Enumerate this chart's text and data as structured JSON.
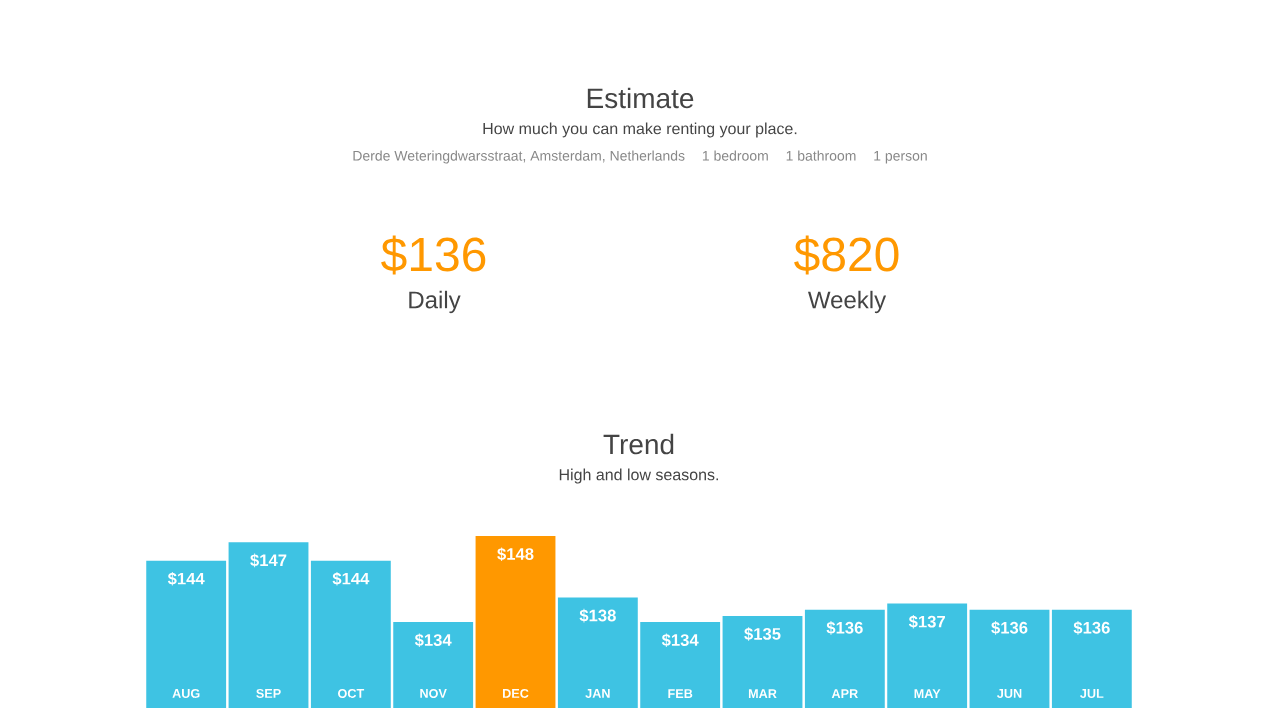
{
  "chart_data": [
    {
      "type": "other",
      "title": "Estimate",
      "subtitle": "How much you can make renting your place.",
      "annotations": [
        "Derde Weteringdwarsstraat, Amsterdam, Netherlands",
        "1 bedroom",
        "1 bathroom",
        "1 person",
        "$136",
        "Daily",
        "$820",
        "Weekly"
      ]
    },
    {
      "type": "bar",
      "title": "Trend",
      "subtitle": "High and low seasons.",
      "categories": [
        "AUG",
        "SEP",
        "OCT",
        "NOV",
        "DEC",
        "JAN",
        "FEB",
        "MAR",
        "APR",
        "MAY",
        "JUN",
        "JUL"
      ],
      "values": [
        144,
        147,
        144,
        134,
        148,
        138,
        134,
        135,
        136,
        137,
        136,
        136
      ],
      "value_labels": [
        "$144",
        "$147",
        "$144",
        "$134",
        "$148",
        "$138",
        "$134",
        "$135",
        "$136",
        "$137",
        "$136",
        "$136"
      ],
      "colors": [
        "#3ec3e3",
        "#3ec3e3",
        "#3ec3e3",
        "#3ec3e3",
        "#ff9800",
        "#3ec3e3",
        "#3ec3e3",
        "#3ec3e3",
        "#3ec3e3",
        "#3ec3e3",
        "#3ec3e3",
        "#3ec3e3"
      ],
      "ylim": [
        120,
        148
      ],
      "tick_labels": false
    }
  ]
}
